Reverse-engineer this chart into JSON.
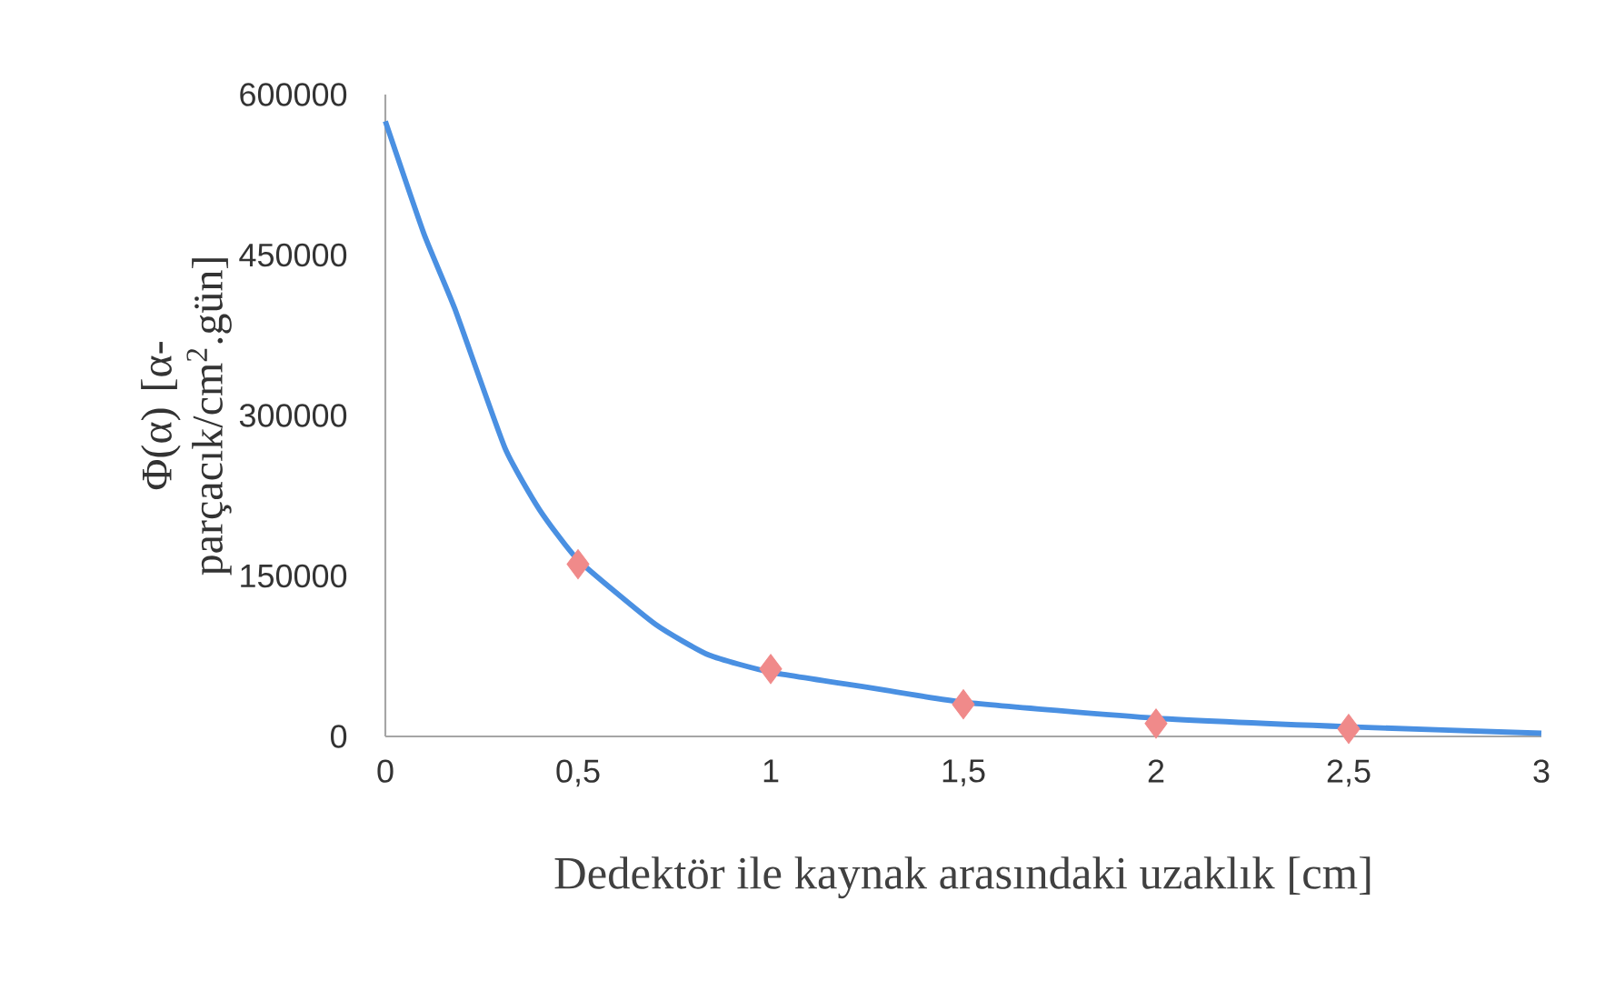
{
  "chart_data": {
    "type": "line",
    "xlabel": "Dedektör ile kaynak arasındaki uzaklık [cm]",
    "ylabel": "Φ(α) [α-parçacık/cm$^{2}$.gün]",
    "xlim": [
      0,
      3
    ],
    "ylim": [
      0,
      600000
    ],
    "xticks": [
      0,
      {
        "value": 0.5,
        "label": "0,5"
      },
      1,
      {
        "value": 1.5,
        "label": "1,5"
      },
      2,
      {
        "value": 2.5,
        "label": "2,5"
      },
      3
    ],
    "yticks": [
      0,
      150000,
      300000,
      450000,
      600000
    ],
    "grid": false,
    "series": [
      {
        "color": "#4a90e2",
        "marker": "none",
        "x": [
          0,
          0.1,
          0.18,
          0.31,
          0.4,
          0.5,
          0.7,
          0.84,
          1,
          1.25,
          1.5,
          2,
          2.5,
          3
        ],
        "values": [
          575000,
          470000,
          400000,
          270000,
          212000,
          165000,
          105000,
          76000,
          60000,
          46000,
          32000,
          17000,
          9000,
          3000
        ]
      },
      {
        "type": "scatter",
        "color": "#f08a8a",
        "marker": "diamond",
        "x": [
          0.5,
          1,
          1.5,
          2,
          2.5
        ],
        "values": [
          161000,
          63000,
          30000,
          12000,
          7000
        ]
      }
    ]
  }
}
